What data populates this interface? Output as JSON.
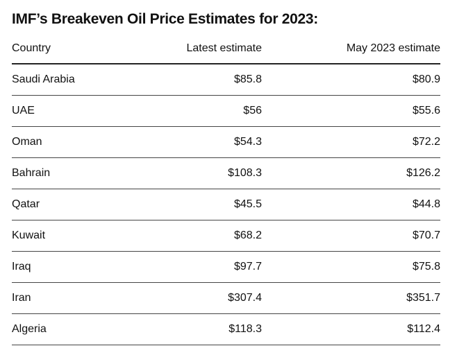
{
  "title": "IMF’s Breakeven Oil Price Estimates for 2023:",
  "table": {
    "header": [
      "Country",
      "Latest estimate",
      "May 2023 estimate"
    ],
    "rows": [
      [
        "Saudi Arabia",
        "$85.8",
        "$80.9"
      ],
      [
        "UAE",
        "$56",
        "$55.6"
      ],
      [
        "Oman",
        "$54.3",
        "$72.2"
      ],
      [
        "Bahrain",
        "$108.3",
        "$126.2"
      ],
      [
        "Qatar",
        "$45.5",
        "$44.8"
      ],
      [
        "Kuwait",
        "$68.2",
        "$70.7"
      ],
      [
        "Iraq",
        "$97.7",
        "$75.8"
      ],
      [
        "Iran",
        "$307.4",
        "$351.7"
      ],
      [
        "Algeria",
        "$118.3",
        "$112.4"
      ]
    ]
  }
}
